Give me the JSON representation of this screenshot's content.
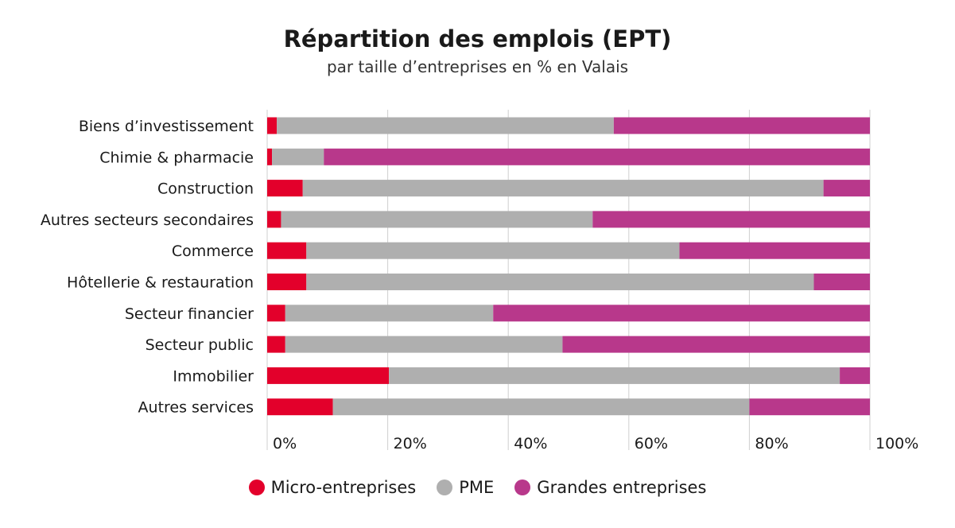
{
  "chart_data": {
    "type": "bar",
    "orientation": "horizontal",
    "stacked": true,
    "title": "Répartition des emplois (EPT)",
    "subtitle": "par taille d’entreprises en % en Valais",
    "categories": [
      "Biens d’investissement",
      "Chimie & pharmacie",
      "Construction",
      "Autres secteurs secondaires",
      "Commerce",
      "Hôtellerie & restauration",
      "Secteur financier",
      "Secteur public",
      "Immobilier",
      "Autres services"
    ],
    "series": [
      {
        "name": "Micro-entreprises",
        "color": "#e3002b",
        "values": [
          1.6,
          0.8,
          5.9,
          2.3,
          6.5,
          6.5,
          3.0,
          3.0,
          20.2,
          10.9
        ]
      },
      {
        "name": "PME",
        "color": "#afafaf",
        "values": [
          55.9,
          8.6,
          86.4,
          51.7,
          61.9,
          84.2,
          34.5,
          46.0,
          74.8,
          69.1
        ]
      },
      {
        "name": "Grandes entreprises",
        "color": "#b8388b",
        "values": [
          42.5,
          90.6,
          7.7,
          46.0,
          31.6,
          9.3,
          62.5,
          51.0,
          5.0,
          20.0
        ]
      }
    ],
    "xlim": [
      0,
      100
    ],
    "xticks": [
      "0%",
      "20%",
      "40%",
      "60%",
      "80%",
      "100%"
    ],
    "grid": true,
    "legend_position": "bottom"
  }
}
